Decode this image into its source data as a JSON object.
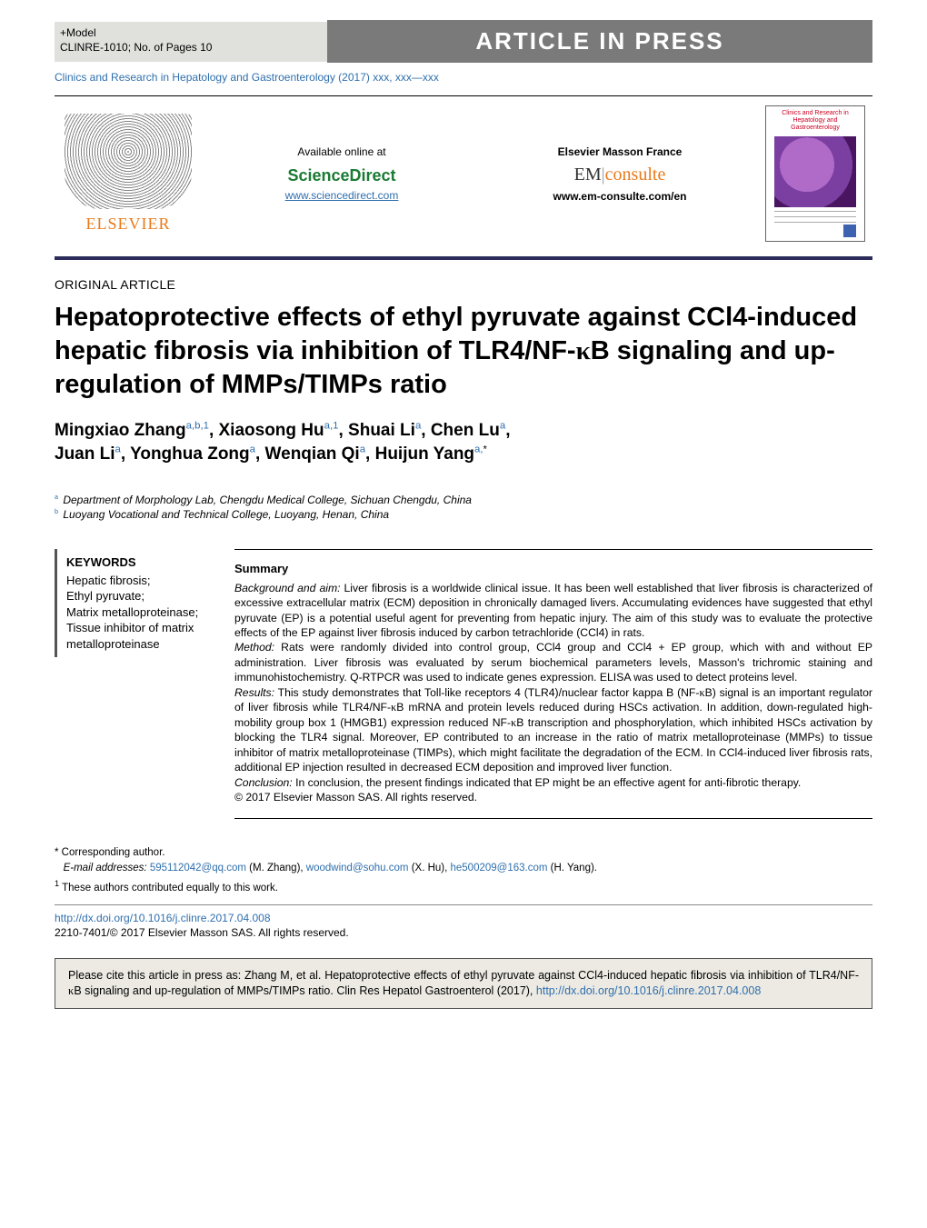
{
  "header": {
    "plusModel": "+Model",
    "ref": "CLINRE-1010;   No. of Pages 10",
    "pressLabel": "ARTICLE IN PRESS",
    "journalRef": "Clinics and Research in Hepatology and Gastroenterology (2017) xxx, xxx—xxx",
    "availableAt": "Available online at",
    "sdName": "ScienceDirect",
    "sdUrl": "www.sciencedirect.com",
    "emfLabel": "Elsevier Masson France",
    "emPrefix": "EM",
    "emSuffix": "consulte",
    "emUrl": "www.em-consulte.com/en",
    "elsevier": "ELSEVIER",
    "coverTitle": "Clinics and Research in Hepatology and Gastroenterology"
  },
  "article": {
    "sectionLabel": "ORIGINAL ARTICLE",
    "title": "Hepatoprotective effects of ethyl pyruvate against CCl4-induced hepatic fibrosis via inhibition of TLR4/NF-κB signaling and up-regulation of MMPs/TIMPs ratio",
    "authorsHtml": "Mingxiao Zhang<sup>a,b,1</sup>, Xiaosong Hu<sup>a,1</sup>, Shuai Li<sup>a</sup>, Chen Lu<sup>a</sup>, Juan Li<sup>a</sup>, Yonghua Zong<sup>a</sup>, Wenqian Qi<sup>a</sup>, Huijun Yang<sup>a,*</sup>",
    "affils": {
      "a": "Department of Morphology Lab, Chengdu Medical College, Sichuan Chengdu, China",
      "b": "Luoyang Vocational and Technical College, Luoyang, Henan, China"
    }
  },
  "keywords": {
    "heading": "KEYWORDS",
    "list": "Hepatic fibrosis;\nEthyl pyruvate;\nMatrix metalloproteinase;\nTissue inhibitor of matrix metalloproteinase"
  },
  "abstract": {
    "heading": "Summary",
    "background": "Background and aim: Liver fibrosis is a worldwide clinical issue. It has been well established that liver fibrosis is characterized of excessive extracellular matrix (ECM) deposition in chronically damaged livers. Accumulating evidences have suggested that ethyl pyruvate (EP) is a potential useful agent for preventing from hepatic injury. The aim of this study was to evaluate the protective effects of the EP against liver fibrosis induced by carbon tetrachloride (CCl4) in rats.",
    "method": "Method: Rats were randomly divided into control group, CCl4 group and CCl4 + EP group, which with and without EP administration. Liver fibrosis was evaluated by serum biochemical parameters levels, Masson's trichromic staining and immunohistochemistry. Q-RTPCR was used to indicate genes expression. ELISA was used to detect proteins level.",
    "results": "Results: This study demonstrates that Toll-like receptors 4 (TLR4)/nuclear factor kappa B (NF-κB) signal is an important regulator of liver fibrosis while TLR4/NF-κB mRNA and protein levels reduced during HSCs activation. In addition, down-regulated high-mobility group box 1 (HMGB1) expression reduced NF-κB transcription and phosphorylation, which inhibited HSCs activation by blocking the TLR4 signal. Moreover, EP contributed to an increase in the ratio of matrix metalloproteinase (MMPs) to tissue inhibitor of matrix metalloproteinase (TIMPs), which might facilitate the degradation of the ECM. In CCl4-induced liver fibrosis rats, additional EP injection resulted in decreased ECM deposition and improved liver function.",
    "conclusion": "Conclusion: In conclusion, the present findings indicated that EP might be an effective agent for anti-fibrotic therapy.",
    "copyright": "© 2017 Elsevier Masson SAS. All rights reserved."
  },
  "footnotes": {
    "corr": "Corresponding author.",
    "emailsLabel": "E-mail addresses:",
    "emails": [
      {
        "addr": "595112042@qq.com",
        "who": "(M. Zhang)"
      },
      {
        "addr": "woodwind@sohu.com",
        "who": "(X. Hu)"
      },
      {
        "addr": "he500209@163.com",
        "who": "(H. Yang)."
      }
    ],
    "equal": "These authors contributed equally to this work."
  },
  "doi": {
    "url": "http://dx.doi.org/10.1016/j.clinre.2017.04.008",
    "rights": "2210-7401/© 2017 Elsevier Masson SAS. All rights reserved."
  },
  "citebox": {
    "text": "Please cite this article in press as: Zhang M, et al. Hepatoprotective effects of ethyl pyruvate against CCl4-induced hepatic fibrosis via inhibition of TLR4/NF-κB signaling and up-regulation of MMPs/TIMPs ratio. Clin Res Hepatol Gastroenterol (2017), ",
    "url": "http://dx.doi.org/10.1016/j.clinre.2017.04.008"
  }
}
